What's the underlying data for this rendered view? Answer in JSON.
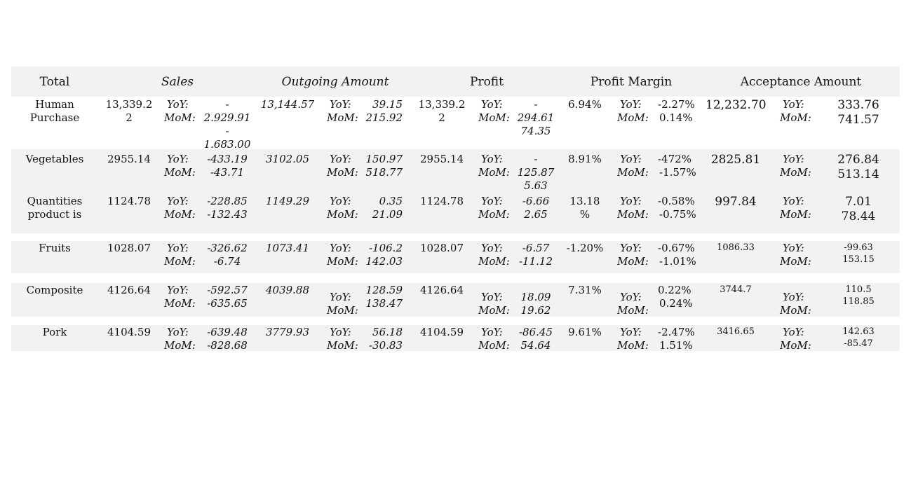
{
  "headers": {
    "total": "Total",
    "sales": "Sales",
    "outgoing": "Outgoing  Amount",
    "profit": "Profit",
    "margin": "Profit Margin",
    "acceptance": "Acceptance Amount"
  },
  "labels": {
    "yoy": "YoY:",
    "mom": "MoM:"
  },
  "rows": [
    {
      "name_lines": [
        "Human",
        "Purchase"
      ],
      "sales": [
        "13,339.2",
        "2"
      ],
      "sales_yoy": "-",
      "sales_mom": "2.929.91",
      "sales_extra": [
        "-",
        "1.683.00"
      ],
      "outgoing": "13,144.57",
      "out_yoy": "39.15",
      "out_mom": "215.92",
      "profit": [
        "13,339.2",
        "2"
      ],
      "profit_yoy": "-",
      "profit_mom": "294.61",
      "profit_extra": [
        "74.35"
      ],
      "margin": [
        "6.94%"
      ],
      "margin_yoy": "-2.27%",
      "margin_mom": "0.14%",
      "acceptance": "12,232.70",
      "acc_yoy": "333.76",
      "acc_mom": "741.57"
    },
    {
      "name_lines": [
        "Vegetables"
      ],
      "sales": [
        "2955.14"
      ],
      "sales_yoy": "-433.19",
      "sales_mom": "-43.71",
      "outgoing": "3102.05",
      "out_yoy": "150.97",
      "out_mom": "518.77",
      "profit": [
        "2955.14"
      ],
      "profit_yoy": "-",
      "profit_mom": "125.87",
      "profit_extra": [
        "5.63"
      ],
      "margin": [
        "8.91%"
      ],
      "margin_yoy": "-472%",
      "margin_mom": "-1.57%",
      "acceptance": "2825.81",
      "acc_yoy": "276.84",
      "acc_mom": "513.14"
    },
    {
      "name_lines": [
        "Quantities",
        "product is"
      ],
      "sales": [
        "1124.78"
      ],
      "sales_yoy": "-228.85",
      "sales_mom": "-132.43",
      "outgoing": "1149.29",
      "out_yoy": "0.35",
      "out_mom": "21.09",
      "profit": [
        "1124.78"
      ],
      "profit_yoy": "-6.66",
      "profit_mom": "2.65",
      "margin": [
        "13.18",
        "%"
      ],
      "margin_yoy": "-0.58%",
      "margin_mom": "-0.75%",
      "acceptance": "997.84",
      "acc_yoy": "7.01",
      "acc_mom": "78.44"
    },
    {
      "name_lines": [
        "Fruits"
      ],
      "sales": [
        "1028.07"
      ],
      "sales_yoy": "-326.62",
      "sales_mom": "-6.74",
      "outgoing": "1073.41",
      "out_yoy": "-106.2",
      "out_mom": "142.03",
      "profit": [
        "1028.07"
      ],
      "profit_yoy": "-6.57",
      "profit_mom": "-11.12",
      "margin": [
        "-1.20%"
      ],
      "margin_yoy": "-0.67%",
      "margin_mom": "-1.01%",
      "acceptance": "1086.33",
      "acc_yoy": "-99.63",
      "acc_mom": "153.15"
    },
    {
      "name_lines": [
        "Composite"
      ],
      "sales": [
        "4126.64"
      ],
      "sales_yoy": "-592.57",
      "sales_mom": "-635.65",
      "outgoing": "4039.88",
      "out_yoy": "128.59",
      "out_mom": "138.47",
      "profit": [
        "4126.64"
      ],
      "profit_yoy": "18.09",
      "profit_mom": "19.62",
      "margin": [
        "7.31%"
      ],
      "margin_yoy": "0.22%",
      "margin_mom": "0.24%",
      "acceptance": "3744.7",
      "acc_yoy": "110.5",
      "acc_mom": "118.85"
    },
    {
      "name_lines": [
        "Pork"
      ],
      "sales": [
        "4104.59"
      ],
      "sales_yoy": "-639.48",
      "sales_mom": "-828.68",
      "outgoing": "3779.93",
      "out_yoy": "56.18",
      "out_mom": "-30.83",
      "profit": [
        "4104.59"
      ],
      "profit_yoy": "-86.45",
      "profit_mom": "54.64",
      "margin": [
        "9.61%"
      ],
      "margin_yoy": "-2.47%",
      "margin_mom": "1.51%",
      "acceptance": "3416.65",
      "acc_yoy": "142.63",
      "acc_mom": "-85.47"
    }
  ]
}
